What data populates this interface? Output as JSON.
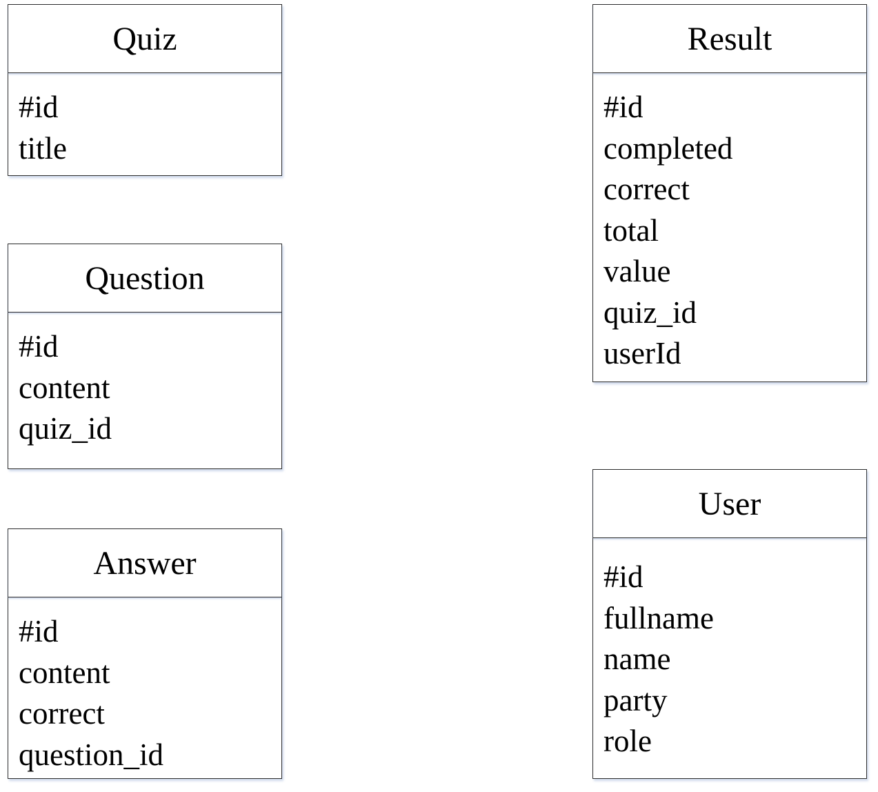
{
  "entities": {
    "quiz": {
      "name": "Quiz",
      "attributes": [
        "#id",
        "title"
      ]
    },
    "question": {
      "name": "Question",
      "attributes": [
        "#id",
        "content",
        "quiz_id"
      ]
    },
    "answer": {
      "name": "Answer",
      "attributes": [
        "#id",
        "content",
        "correct",
        "question_id"
      ]
    },
    "result": {
      "name": "Result",
      "attributes": [
        "#id",
        "completed",
        "correct",
        "total",
        "value",
        "quiz_id",
        "userId"
      ]
    },
    "user": {
      "name": "User",
      "attributes": [
        "#id",
        "fullname",
        "name",
        "party",
        "role"
      ]
    }
  }
}
